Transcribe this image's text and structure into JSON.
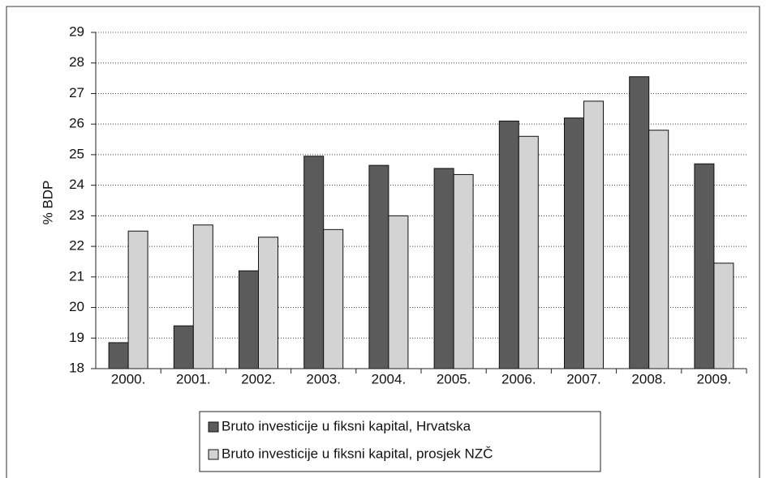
{
  "chart_data": {
    "type": "bar",
    "y_label": "% BDP",
    "categories": [
      "2000.",
      "2001.",
      "2002.",
      "2003.",
      "2004.",
      "2005.",
      "2006.",
      "2007.",
      "2008.",
      "2009."
    ],
    "series": [
      {
        "name": "Bruto investicije u fiksni kapital, Hrvatska",
        "color": "#5b5b5b",
        "values": [
          18.85,
          19.4,
          21.2,
          24.95,
          24.65,
          24.55,
          26.1,
          26.2,
          27.55,
          24.7
        ]
      },
      {
        "name": "Bruto investicije u fiksni kapital, prosjek NZČ",
        "color": "#d3d3d3",
        "values": [
          22.5,
          22.7,
          22.3,
          22.55,
          23.0,
          24.35,
          25.6,
          26.75,
          25.8,
          21.45
        ]
      }
    ],
    "ylim": [
      18,
      29
    ],
    "yticks": [
      18,
      19,
      20,
      21,
      22,
      23,
      24,
      25,
      26,
      27,
      28,
      29
    ],
    "grid": true
  }
}
